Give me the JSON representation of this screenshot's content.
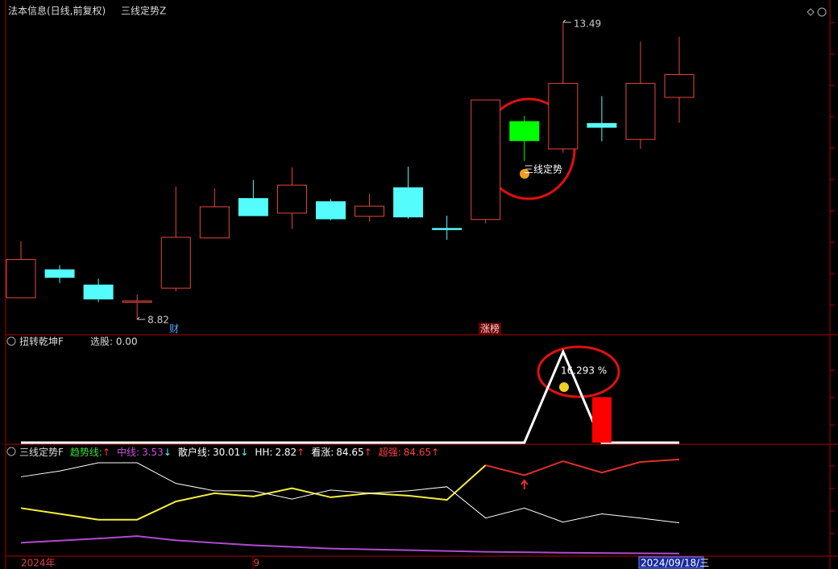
{
  "chart_data": [
    {
      "type": "candlestick",
      "title": "法本信息(日线,前复权)",
      "subtitle": "三线定势Z",
      "open": [
        9.16,
        9.6,
        9.36,
        9.09,
        9.31,
        10.1,
        10.72,
        10.49,
        10.67,
        10.44,
        10.89,
        10.25,
        10.39,
        11.93,
        11.5,
        11.9,
        11.65,
        12.31
      ],
      "close": [
        9.76,
        9.48,
        9.14,
        9.11,
        10.11,
        10.59,
        10.45,
        10.93,
        10.4,
        10.6,
        10.43,
        10.25,
        12.27,
        11.63,
        12.53,
        11.84,
        12.53,
        12.67
      ],
      "high": [
        10.05,
        9.67,
        9.46,
        9.21,
        10.91,
        10.88,
        11.01,
        11.21,
        10.71,
        10.79,
        11.22,
        10.45,
        12.27,
        12.02,
        13.49,
        12.33,
        13.19,
        13.26
      ],
      "low": [
        9.16,
        9.39,
        9.09,
        8.82,
        9.26,
        10.1,
        10.45,
        10.24,
        10.38,
        10.36,
        10.4,
        10.07,
        10.33,
        11.31,
        11.44,
        11.62,
        11.5,
        11.91
      ],
      "up_color": "#e8473f",
      "down_color": "#54fcfc",
      "signal_color": "#00ff00",
      "annotation": "三线定势",
      "markers": [
        "财",
        "涨榜"
      ],
      "ylim": [
        8.59,
        13.74
      ]
    },
    {
      "type": "line_bar",
      "title": "扭转乾坤F",
      "subtitle": "选股: 0.00",
      "series": [
        {
          "name": "line",
          "color": "#ffffff",
          "values": [
            0,
            0,
            0,
            0,
            0,
            0,
            0,
            0,
            0,
            0,
            0,
            0,
            0,
            0,
            1,
            0,
            0,
            0
          ]
        },
        {
          "name": "bar",
          "color": "#ff0000",
          "values": [
            null,
            null,
            null,
            null,
            null,
            null,
            null,
            null,
            null,
            null,
            null,
            null,
            null,
            null,
            null,
            0.5,
            null,
            null
          ]
        }
      ],
      "annotation": "16.293 %",
      "ylim": [
        0,
        1.15
      ]
    },
    {
      "type": "line",
      "title": "三线定势F",
      "label_separator": ":",
      "categories": [
        "2024年",
        null,
        null,
        null,
        null,
        null,
        "9",
        null,
        null,
        null,
        null,
        null,
        null,
        null,
        null,
        null,
        "2024/09/18/三",
        null
      ],
      "series": [
        {
          "name": "趋势线",
          "color": "#f4f03c",
          "label_color": "#3cdc3c",
          "arrow": "↑",
          "values": [
            42.7,
            37.7,
            32.7,
            32.7,
            48.4,
            55.5,
            52.7,
            59.8,
            52.0,
            55.5,
            53.4,
            49.8,
            79.7,
            null,
            null,
            null,
            null,
            null
          ]
        },
        {
          "name": "中线",
          "color": "#b04ad0",
          "label_color": "#d050e0",
          "arrow": "↓",
          "values": [
            12.8,
            14.6,
            16.4,
            18.5,
            14.9,
            12.7,
            10.6,
            9.2,
            7.8,
            7.1,
            6.4,
            5.7,
            5.0,
            4.6,
            4.2,
            3.9,
            3.7,
            3.53
          ]
        },
        {
          "name": "散户线",
          "color": "#ffffff",
          "label_color": "#ffffff",
          "arrow": "↓",
          "values": [
            69.7,
            74.7,
            81.8,
            81.8,
            64.0,
            57.6,
            57.6,
            50.5,
            58.3,
            55.5,
            57.6,
            61.1,
            34.1,
            42.7,
            30.6,
            37.7,
            34.1,
            30.01
          ]
        },
        {
          "name": "超强",
          "color": "#e0302a",
          "label_color": "#ff4040",
          "arrow": "↑",
          "values": [
            null,
            null,
            null,
            null,
            null,
            null,
            null,
            null,
            null,
            null,
            null,
            null,
            79.7,
            71.1,
            83.2,
            73.3,
            82.5,
            84.65
          ]
        }
      ],
      "extras": [
        {
          "name": "HH",
          "value": 2.82,
          "arrow": "↑",
          "color": "#ffffff"
        },
        {
          "name": "看涨",
          "value": 84.65,
          "arrow": "↑",
          "color": "#ffffff"
        }
      ],
      "ylim": [
        -5,
        95
      ]
    }
  ]
}
